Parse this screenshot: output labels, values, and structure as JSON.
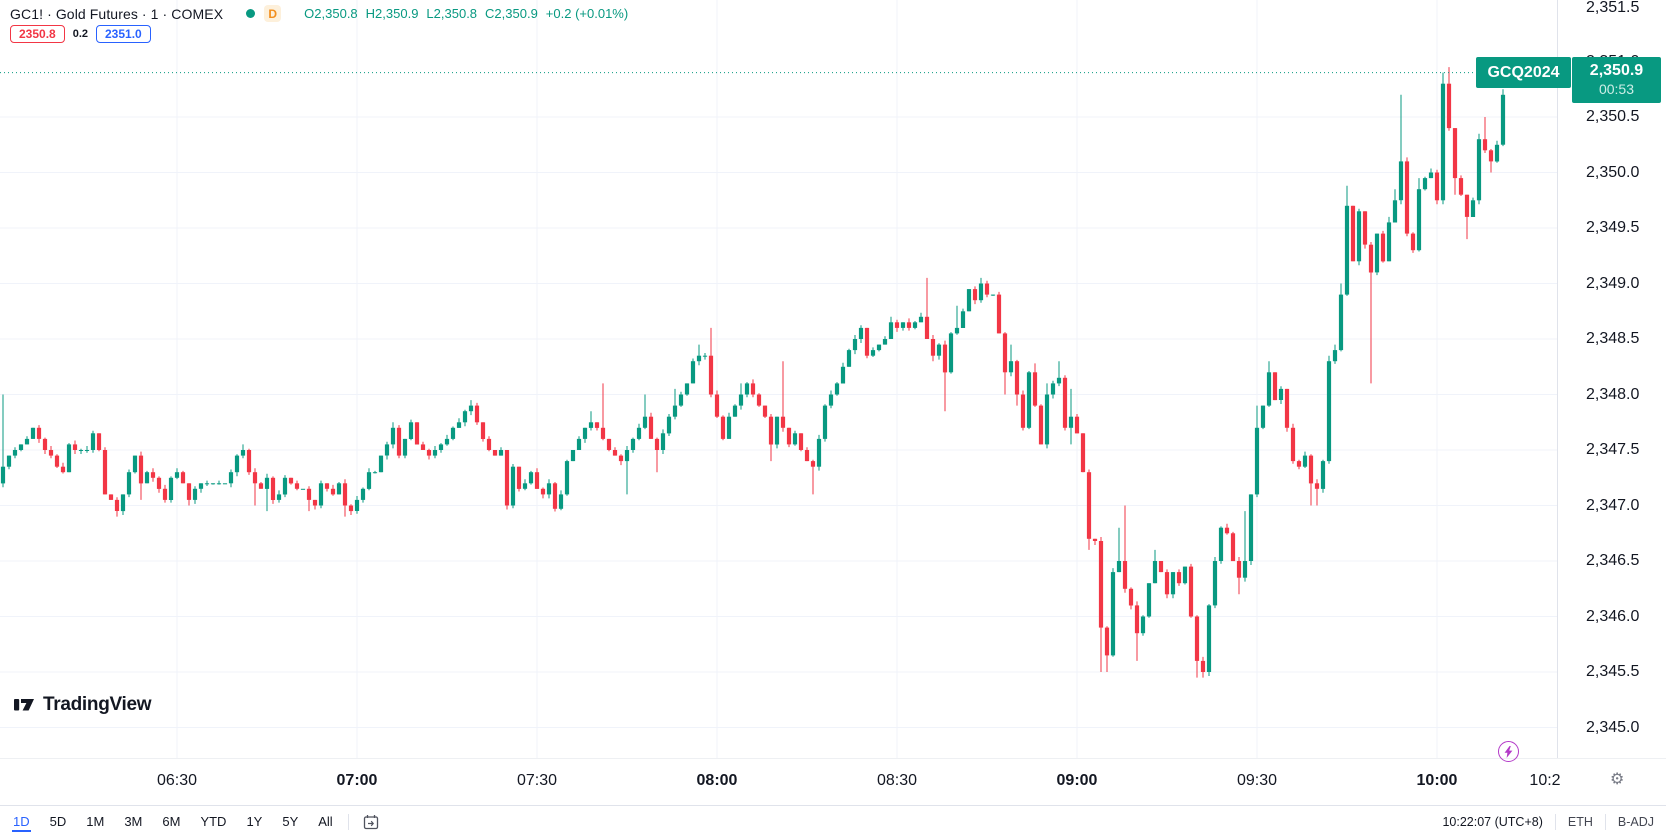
{
  "header": {
    "symbol_title": "GC1! · Gold Futures · 1 · COMEX",
    "session_badge": "D",
    "ohlc": {
      "o_label": "O",
      "open": "2,350.8",
      "h_label": "H",
      "high": "2,350.9",
      "l_label": "L",
      "low": "2,350.8",
      "c_label": "C",
      "close": "2,350.9",
      "change": "+0.2 (+0.01%)"
    },
    "bid": "2350.8",
    "spread": "0.2",
    "ask": "2351.0"
  },
  "logo": {
    "wordmark": "TradingView"
  },
  "price_axis": {
    "labels": [
      "2,351.5",
      "2,351.0",
      "2,350.5",
      "2,350.0",
      "2,349.5",
      "2,349.0",
      "2,348.5",
      "2,348.0",
      "2,347.5",
      "2,347.0",
      "2,346.5",
      "2,346.0",
      "2,345.5",
      "2,345.0"
    ]
  },
  "time_axis": {
    "labels": [
      {
        "t": "06:30",
        "bold": false
      },
      {
        "t": "07:00",
        "bold": true
      },
      {
        "t": "07:30",
        "bold": false
      },
      {
        "t": "08:00",
        "bold": true
      },
      {
        "t": "08:30",
        "bold": false
      },
      {
        "t": "09:00",
        "bold": true
      },
      {
        "t": "09:30",
        "bold": false
      },
      {
        "t": "10:00",
        "bold": true
      },
      {
        "t": "10:2",
        "bold": false
      }
    ]
  },
  "last_price_marker": {
    "contract": "GCQ2024",
    "price": "2,350.9",
    "countdown": "00:53"
  },
  "toolbar": {
    "ranges": [
      "1D",
      "5D",
      "1M",
      "3M",
      "6M",
      "YTD",
      "1Y",
      "5Y",
      "All"
    ],
    "active_range": "1D",
    "clock": "10:22:07 (UTC+8)",
    "session": "ETH",
    "adjustment": "B-ADJ"
  },
  "colors": {
    "up": "#089981",
    "down": "#f23645",
    "accent_blue": "#2962ff",
    "badge_orange": "#f28e1c",
    "grid": "#f0f3fa"
  },
  "chart_data": {
    "type": "candlestick",
    "symbol": "GC1!",
    "name": "Gold Futures",
    "exchange": "COMEX",
    "contract": "GCQ2024",
    "interval": "1 minute",
    "visible_time_range": [
      "06:00",
      "10:12"
    ],
    "xlabel_ticks": [
      "06:30",
      "07:00",
      "07:30",
      "08:00",
      "08:30",
      "09:00",
      "09:30",
      "10:00"
    ],
    "ylim": [
      2344.9,
      2351.5
    ],
    "y_ticks": [
      2345.0,
      2345.5,
      2346.0,
      2346.5,
      2347.0,
      2347.5,
      2348.0,
      2348.5,
      2349.0,
      2349.5,
      2350.0,
      2350.5,
      2351.0,
      2351.5
    ],
    "last_price": 2350.9,
    "current_bar": {
      "open": 2350.8,
      "high": 2350.9,
      "low": 2350.8,
      "close": 2350.9,
      "change": 0.2,
      "change_pct": 0.01
    },
    "session_visible_high": 2350.95,
    "session_visible_low": 2345.45,
    "open_first": 2347.1,
    "start_minute_time": "06:00",
    "closes": [
      2347.2,
      2347.35,
      2347.45,
      2347.5,
      2347.55,
      2347.6,
      2347.7,
      2347.6,
      2347.5,
      2347.45,
      2347.35,
      2347.3,
      2347.55,
      2347.5,
      2347.5,
      2347.5,
      2347.65,
      2347.5,
      2347.1,
      2347.05,
      2346.95,
      2347.1,
      2347.3,
      2347.45,
      2347.2,
      2347.3,
      2347.25,
      2347.15,
      2347.05,
      2347.25,
      2347.3,
      2347.2,
      2347.05,
      2347.15,
      2347.2,
      2347.2,
      2347.2,
      2347.2,
      2347.2,
      2347.3,
      2347.45,
      2347.5,
      2347.3,
      2347.2,
      2347.15,
      2347.25,
      2347.05,
      2347.1,
      2347.25,
      2347.2,
      2347.15,
      2347.15,
      2347.05,
      2347.0,
      2347.2,
      2347.15,
      2347.1,
      2347.2,
      2347.0,
      2346.95,
      2347.05,
      2347.15,
      2347.3,
      2347.3,
      2347.45,
      2347.55,
      2347.7,
      2347.45,
      2347.6,
      2347.75,
      2347.55,
      2347.5,
      2347.45,
      2347.5,
      2347.55,
      2347.6,
      2347.7,
      2347.75,
      2347.85,
      2347.9,
      2347.75,
      2347.6,
      2347.5,
      2347.45,
      2347.5,
      2347.0,
      2347.35,
      2347.15,
      2347.2,
      2347.3,
      2347.15,
      2347.1,
      2347.2,
      2346.97,
      2347.1,
      2347.4,
      2347.5,
      2347.6,
      2347.7,
      2347.75,
      2347.7,
      2347.6,
      2347.5,
      2347.45,
      2347.4,
      2347.5,
      2347.6,
      2347.7,
      2347.8,
      2347.6,
      2347.5,
      2347.65,
      2347.8,
      2347.9,
      2348.0,
      2348.1,
      2348.3,
      2348.35,
      2348.35,
      2348.0,
      2347.8,
      2347.6,
      2347.8,
      2347.9,
      2348.0,
      2348.1,
      2348.0,
      2347.9,
      2347.8,
      2347.55,
      2347.8,
      2347.7,
      2347.55,
      2347.65,
      2347.5,
      2347.4,
      2347.35,
      2347.6,
      2347.9,
      2348.0,
      2348.1,
      2348.25,
      2348.4,
      2348.5,
      2348.6,
      2348.35,
      2348.4,
      2348.45,
      2348.5,
      2348.65,
      2348.6,
      2348.65,
      2348.6,
      2348.65,
      2348.7,
      2348.5,
      2348.35,
      2348.45,
      2348.2,
      2348.55,
      2348.6,
      2348.75,
      2348.95,
      2348.85,
      2349.0,
      2348.9,
      2348.9,
      2348.55,
      2348.2,
      2348.3,
      2348.0,
      2347.7,
      2348.2,
      2347.9,
      2347.55,
      2348.0,
      2348.1,
      2348.15,
      2347.7,
      2347.8,
      2347.65,
      2347.3,
      2346.7,
      2346.68,
      2345.9,
      2345.65,
      2346.4,
      2346.5,
      2346.25,
      2346.1,
      2345.85,
      2346.0,
      2346.3,
      2346.5,
      2346.4,
      2346.2,
      2346.4,
      2346.3,
      2346.45,
      2346.0,
      2345.6,
      2345.5,
      2346.1,
      2346.5,
      2346.8,
      2346.75,
      2346.5,
      2346.35,
      2346.5,
      2347.1,
      2347.7,
      2347.9,
      2348.2,
      2347.95,
      2348.05,
      2347.7,
      2347.4,
      2347.35,
      2347.45,
      2347.2,
      2347.15,
      2347.4,
      2348.3,
      2348.4,
      2348.9,
      2349.7,
      2349.2,
      2349.65,
      2349.35,
      2349.1,
      2349.45,
      2349.2,
      2349.55,
      2349.75,
      2350.1,
      2349.45,
      2349.3,
      2349.85,
      2349.95,
      2350.0,
      2349.75,
      2350.8,
      2350.4,
      2349.95,
      2349.8,
      2349.6,
      2349.75,
      2350.3,
      2350.2,
      2350.1,
      2350.25,
      2350.7,
      2350.9
    ],
    "wick_overrides": {
      "1": {
        "h": 2348.0
      },
      "20": {
        "l": 2346.9
      },
      "24": {
        "l": 2347.05
      },
      "32": {
        "l": 2347.0
      },
      "41": {
        "h": 2347.55
      },
      "43": {
        "l": 2347.0
      },
      "45": {
        "l": 2346.95
      },
      "52": {
        "l": 2346.95
      },
      "58": {
        "l": 2346.9
      },
      "66": {
        "h": 2347.75
      },
      "79": {
        "h": 2347.95
      },
      "93": {
        "l": 2346.95
      },
      "99": {
        "h": 2347.85
      },
      "101": {
        "h": 2348.1
      },
      "105": {
        "l": 2347.1
      },
      "108": {
        "h": 2348.0
      },
      "110": {
        "l": 2347.3
      },
      "113": {
        "h": 2348.05
      },
      "117": {
        "h": 2348.45
      },
      "119": {
        "h": 2348.6
      },
      "124": {
        "h": 2348.1
      },
      "129": {
        "l": 2347.4
      },
      "131": {
        "h": 2348.3
      },
      "136": {
        "l": 2347.1
      },
      "149": {
        "h": 2348.7
      },
      "155": {
        "h": 2349.05
      },
      "156": {
        "l": 2348.3
      },
      "158": {
        "l": 2347.85
      },
      "160": {
        "h": 2348.8
      },
      "164": {
        "h": 2349.05
      },
      "168": {
        "l": 2348.0
      },
      "169": {
        "h": 2348.45
      },
      "170": {
        "l": 2347.9
      },
      "173": {
        "h": 2348.28
      },
      "175": {
        "h": 2348.1
      },
      "177": {
        "h": 2348.3
      },
      "179": {
        "h": 2348.05,
        "l": 2347.55
      },
      "182": {
        "l": 2346.6
      },
      "184": {
        "l": 2345.5
      },
      "185": {
        "l": 2345.5
      },
      "187": {
        "h": 2346.8
      },
      "188": {
        "h": 2347.0
      },
      "190": {
        "l": 2345.6
      },
      "193": {
        "h": 2346.6
      },
      "200": {
        "l": 2345.45
      },
      "201": {
        "l": 2345.45
      },
      "207": {
        "l": 2346.2
      },
      "208": {
        "h": 2346.95
      },
      "210": {
        "h": 2347.9
      },
      "212": {
        "h": 2348.3
      },
      "219": {
        "l": 2347.0
      },
      "220": {
        "l": 2347.0
      },
      "222": {
        "h": 2348.35
      },
      "223": {
        "h": 2348.45
      },
      "224": {
        "h": 2349.0
      },
      "225": {
        "h": 2349.88
      },
      "229": {
        "l": 2348.1
      },
      "232": {
        "h": 2349.6
      },
      "233": {
        "h": 2349.85
      },
      "234": {
        "h": 2350.7
      },
      "237": {
        "h": 2349.95
      },
      "241": {
        "h": 2350.9
      },
      "242": {
        "h": 2350.95
      },
      "243": {
        "l": 2349.8
      },
      "245": {
        "l": 2349.4
      },
      "247": {
        "h": 2350.35
      },
      "248": {
        "h": 2350.5
      },
      "249": {
        "l": 2350.0
      },
      "251": {
        "h": 2350.75
      },
      "252": {
        "o": 2350.8,
        "h": 2350.9,
        "l": 2350.8
      }
    }
  }
}
